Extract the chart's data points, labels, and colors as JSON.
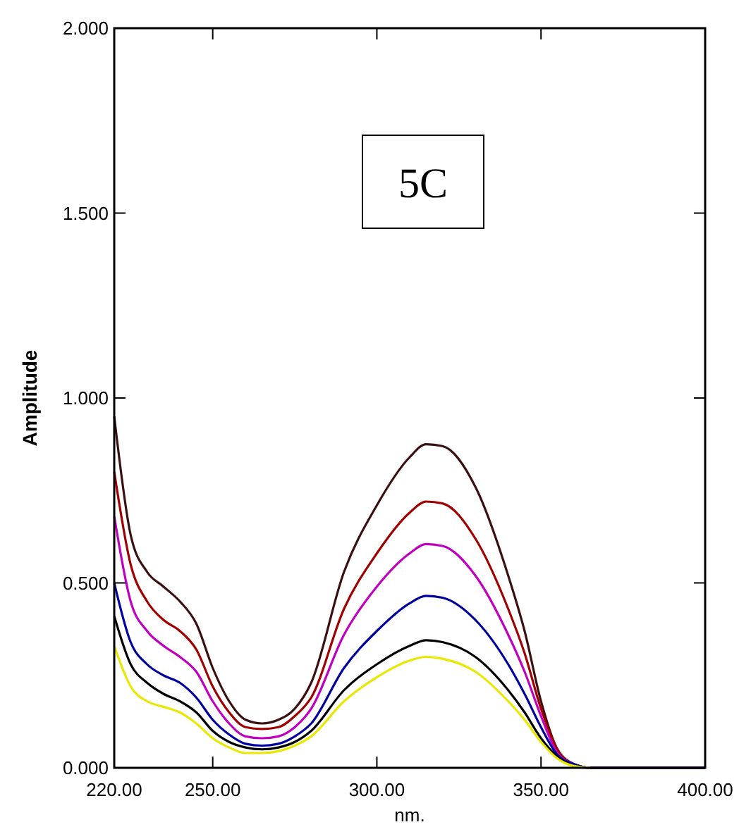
{
  "chart_data": {
    "type": "line",
    "xlabel": "nm.",
    "ylabel": "Amplitude",
    "annotations": [
      "5C"
    ],
    "x": [
      220,
      225,
      230,
      235,
      240,
      245,
      250,
      255,
      260,
      265,
      270,
      275,
      280,
      290,
      300,
      310,
      315,
      320,
      330,
      340,
      345,
      350,
      355,
      360,
      365,
      400
    ],
    "xlim": [
      220,
      400
    ],
    "xticks": [
      {
        "value": 220,
        "label": "220.00"
      },
      {
        "value": 250,
        "label": "250.00"
      },
      {
        "value": 300,
        "label": "300.00"
      },
      {
        "value": 350,
        "label": "350.00"
      },
      {
        "value": 400,
        "label": "400.00"
      }
    ],
    "ylim": [
      0,
      2
    ],
    "yticks": [
      {
        "value": 0,
        "label": "0.000"
      },
      {
        "value": 0.5,
        "label": "0.500"
      },
      {
        "value": 1,
        "label": "1.000"
      },
      {
        "value": 1.5,
        "label": "1.500"
      },
      {
        "value": 2,
        "label": "2.000"
      }
    ],
    "grid": false,
    "marker": "none",
    "line_style": "solid",
    "series": [
      {
        "color": "#3a1010",
        "values": [
          0.95,
          0.63,
          0.53,
          0.49,
          0.45,
          0.39,
          0.27,
          0.18,
          0.13,
          0.12,
          0.13,
          0.16,
          0.23,
          0.53,
          0.71,
          0.84,
          0.875,
          0.87,
          0.76,
          0.52,
          0.37,
          0.18,
          0.05,
          0.01,
          0,
          0
        ]
      },
      {
        "color": "#a00000",
        "values": [
          0.8,
          0.55,
          0.45,
          0.4,
          0.37,
          0.32,
          0.22,
          0.15,
          0.11,
          0.105,
          0.11,
          0.14,
          0.19,
          0.43,
          0.58,
          0.69,
          0.72,
          0.715,
          0.62,
          0.43,
          0.31,
          0.16,
          0.05,
          0.01,
          0,
          0
        ]
      },
      {
        "color": "#c000c0",
        "values": [
          0.68,
          0.45,
          0.37,
          0.33,
          0.3,
          0.26,
          0.18,
          0.12,
          0.085,
          0.08,
          0.085,
          0.11,
          0.16,
          0.36,
          0.49,
          0.58,
          0.605,
          0.6,
          0.52,
          0.36,
          0.26,
          0.14,
          0.04,
          0.01,
          0,
          0
        ]
      },
      {
        "color": "#0000a0",
        "values": [
          0.5,
          0.34,
          0.28,
          0.25,
          0.23,
          0.19,
          0.13,
          0.09,
          0.065,
          0.06,
          0.065,
          0.085,
          0.12,
          0.27,
          0.37,
          0.445,
          0.465,
          0.46,
          0.4,
          0.28,
          0.2,
          0.11,
          0.035,
          0.01,
          0,
          0
        ]
      },
      {
        "color": "#000000",
        "values": [
          0.41,
          0.28,
          0.23,
          0.2,
          0.18,
          0.15,
          0.1,
          0.07,
          0.055,
          0.05,
          0.055,
          0.07,
          0.1,
          0.21,
          0.28,
          0.33,
          0.345,
          0.34,
          0.3,
          0.21,
          0.15,
          0.08,
          0.03,
          0.005,
          0,
          0
        ]
      },
      {
        "color": "#e8e800",
        "values": [
          0.33,
          0.22,
          0.18,
          0.165,
          0.15,
          0.12,
          0.08,
          0.055,
          0.04,
          0.04,
          0.045,
          0.06,
          0.085,
          0.18,
          0.245,
          0.29,
          0.3,
          0.295,
          0.26,
          0.18,
          0.13,
          0.07,
          0.025,
          0.005,
          0,
          null
        ]
      }
    ]
  }
}
